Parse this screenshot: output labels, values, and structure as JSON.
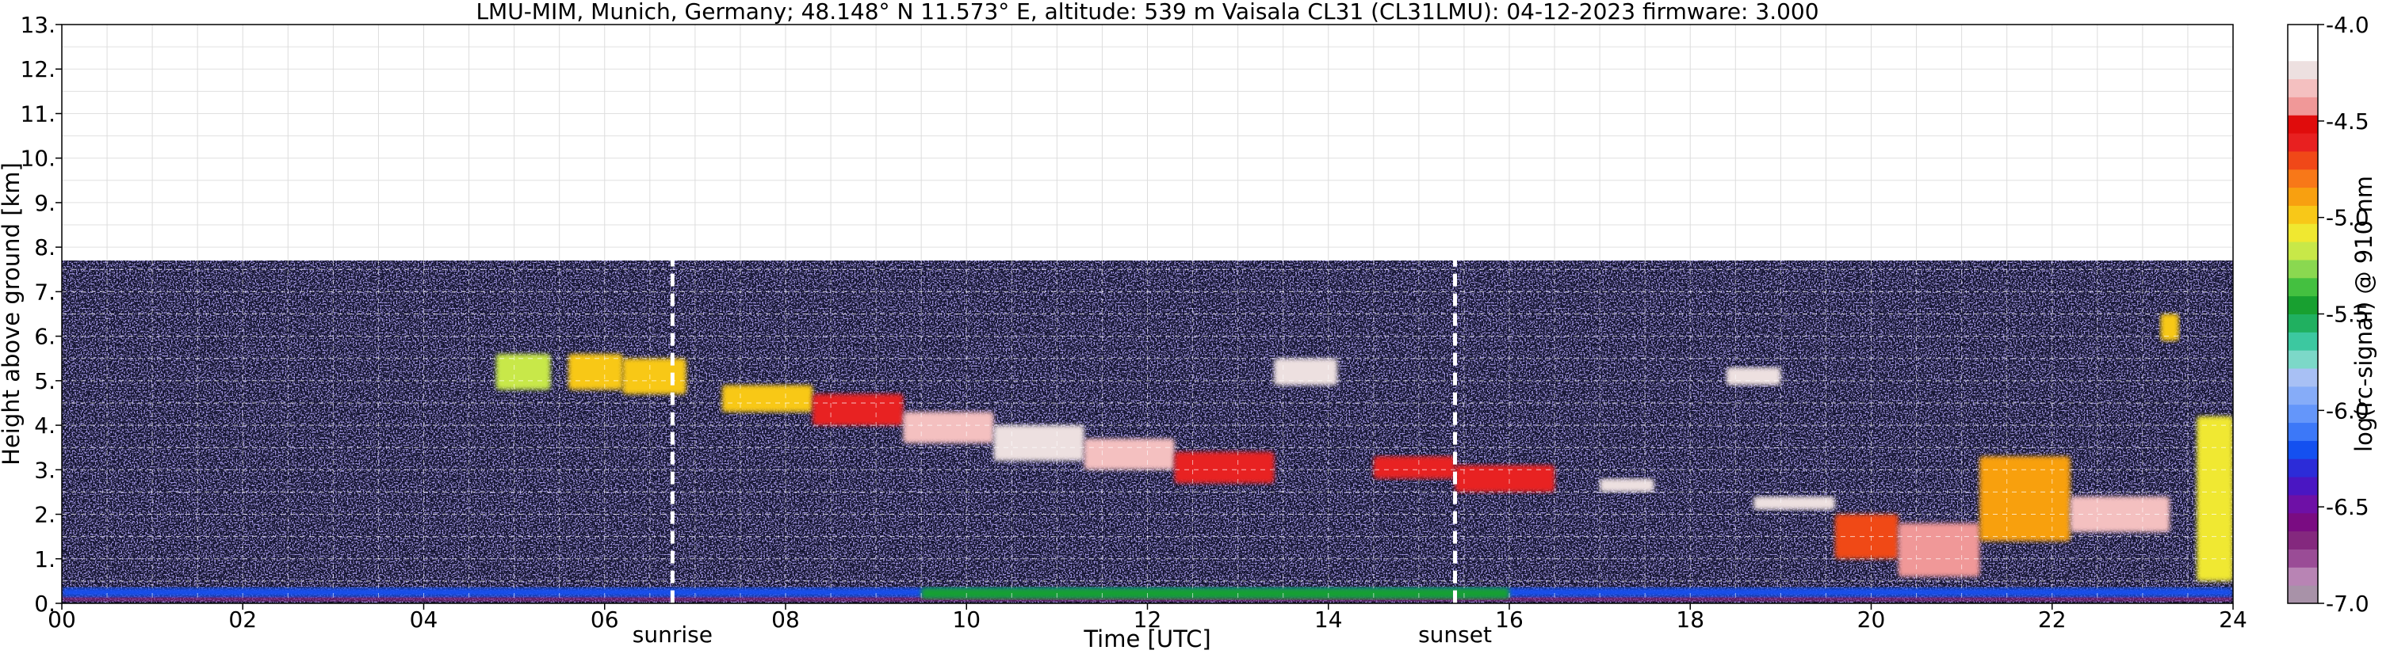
{
  "chart_data": {
    "type": "heatmap",
    "title": "LMU-MIM, Munich, Germany; 48.148° N 11.573° E, altitude: 539 m    Vaisala CL31 (CL31LMU): 04-12-2023    firmware: 3.000",
    "xlabel": "Time [UTC]",
    "ylabel": "Height above ground [km]",
    "xlim": [
      0,
      24
    ],
    "ylim": [
      0,
      13
    ],
    "x_ticks": [
      0,
      2,
      4,
      6,
      8,
      10,
      12,
      14,
      16,
      18,
      20,
      22,
      24
    ],
    "x_tick_labels": [
      "00",
      "02",
      "04",
      "06",
      "08",
      "10",
      "12",
      "14",
      "16",
      "18",
      "20",
      "22",
      "24"
    ],
    "y_ticks": [
      0,
      1,
      2,
      3,
      4,
      5,
      6,
      7,
      8,
      9,
      10,
      11,
      12,
      13
    ],
    "y_tick_labels": [
      "0.",
      "1.",
      "2.",
      "3.",
      "4.",
      "5.",
      "6.",
      "7.",
      "8.",
      "9.",
      "10.",
      "11.",
      "12.",
      "13."
    ],
    "grid": true,
    "measurement_top_km": 7.7,
    "markers": [
      {
        "label": "sunrise",
        "time": 6.75
      },
      {
        "label": "sunset",
        "time": 15.4
      }
    ],
    "colorbar": {
      "label": "log(rc-signal) @ 910 nm",
      "range": [
        -7.0,
        -4.0
      ],
      "ticks": [
        -7.0,
        -6.5,
        -6.0,
        -5.5,
        -5.0,
        -4.5,
        -4.0
      ],
      "tick_labels": [
        "-7.0",
        "-6.5",
        "-6.0",
        "-5.5",
        "-5.0",
        "-4.5",
        "-4.0"
      ],
      "colors": [
        "#a892a8",
        "#b884b4",
        "#9a4c96",
        "#84287e",
        "#7a0c82",
        "#6e10a6",
        "#4a16c2",
        "#2c2cd8",
        "#1450f0",
        "#3c78f8",
        "#6496fa",
        "#86acf8",
        "#a8c0f4",
        "#7cd8c8",
        "#3cc8a0",
        "#20b060",
        "#18a030",
        "#44c040",
        "#8ad850",
        "#c8e848",
        "#f0e830",
        "#f8c818",
        "#f8a010",
        "#f87818",
        "#f04818",
        "#e82020",
        "#e00c0c",
        "#f09898",
        "#f4c0c0",
        "#ede0e0",
        "#ffffff",
        "#ffffff"
      ]
    },
    "features": [
      {
        "time": [
          0.0,
          24.0
        ],
        "height": [
          0.05,
          0.15
        ],
        "value": -6.7
      },
      {
        "time": [
          0.0,
          24.0
        ],
        "height": [
          0.15,
          0.35
        ],
        "value": -6.2
      },
      {
        "time": [
          9.5,
          16.0
        ],
        "height": [
          0.1,
          0.35
        ],
        "value": -5.5
      },
      {
        "time": [
          4.8,
          5.4
        ],
        "height": [
          4.8,
          5.6
        ],
        "value": -5.2
      },
      {
        "time": [
          5.6,
          6.2
        ],
        "height": [
          4.8,
          5.6
        ],
        "value": -5.0
      },
      {
        "time": [
          6.2,
          6.9
        ],
        "height": [
          4.7,
          5.5
        ],
        "value": -5.0
      },
      {
        "time": [
          7.3,
          8.3
        ],
        "height": [
          4.3,
          4.9
        ],
        "value": -5.0
      },
      {
        "time": [
          8.3,
          9.3
        ],
        "height": [
          4.0,
          4.7
        ],
        "value": -4.6
      },
      {
        "time": [
          9.3,
          10.3
        ],
        "height": [
          3.6,
          4.3
        ],
        "value": -4.3
      },
      {
        "time": [
          10.3,
          11.3
        ],
        "height": [
          3.2,
          4.0
        ],
        "value": -4.2
      },
      {
        "time": [
          11.3,
          12.3
        ],
        "height": [
          3.0,
          3.7
        ],
        "value": -4.3
      },
      {
        "time": [
          12.3,
          13.4
        ],
        "height": [
          2.7,
          3.4
        ],
        "value": -4.6
      },
      {
        "time": [
          13.4,
          14.1
        ],
        "height": [
          4.9,
          5.5
        ],
        "value": -4.2
      },
      {
        "time": [
          14.5,
          15.4
        ],
        "height": [
          2.8,
          3.3
        ],
        "value": -4.6
      },
      {
        "time": [
          15.4,
          16.5
        ],
        "height": [
          2.5,
          3.1
        ],
        "value": -4.6
      },
      {
        "time": [
          17.0,
          17.6
        ],
        "height": [
          2.5,
          2.8
        ],
        "value": -4.2
      },
      {
        "time": [
          18.4,
          19.0
        ],
        "height": [
          4.9,
          5.3
        ],
        "value": -4.2
      },
      {
        "time": [
          18.7,
          19.6
        ],
        "height": [
          2.1,
          2.4
        ],
        "value": -4.2
      },
      {
        "time": [
          19.6,
          20.3
        ],
        "height": [
          1.0,
          2.0
        ],
        "value": -4.7
      },
      {
        "time": [
          20.3,
          21.2
        ],
        "height": [
          0.6,
          1.8
        ],
        "value": -4.4
      },
      {
        "time": [
          21.2,
          22.2
        ],
        "height": [
          1.4,
          3.3
        ],
        "value": -4.9
      },
      {
        "time": [
          22.2,
          23.3
        ],
        "height": [
          1.6,
          2.4
        ],
        "value": -4.3
      },
      {
        "time": [
          23.2,
          23.4
        ],
        "height": [
          5.9,
          6.5
        ],
        "value": -5.0
      },
      {
        "time": [
          23.6,
          24.0
        ],
        "height": [
          0.5,
          4.2
        ],
        "value": -5.1
      }
    ]
  }
}
